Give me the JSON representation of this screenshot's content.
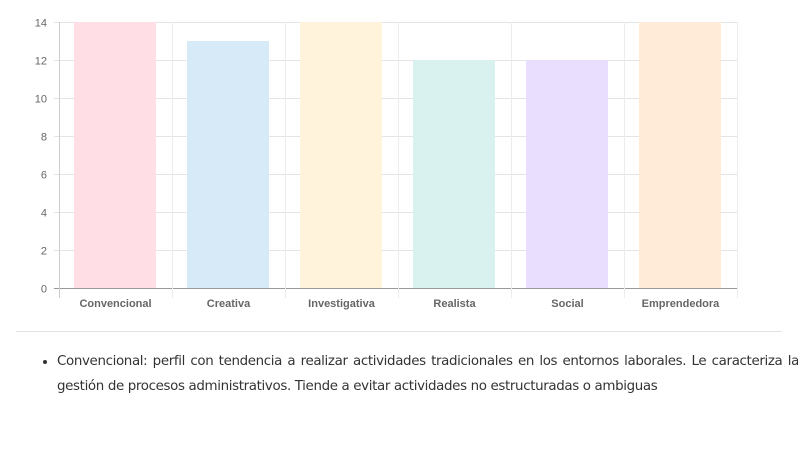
{
  "chart_data": {
    "type": "bar",
    "categories": [
      "Convencional",
      "Creativa",
      "Investigativa",
      "Realista",
      "Social",
      "Emprendedora"
    ],
    "values": [
      14,
      13,
      14,
      12,
      12,
      14
    ],
    "colors": [
      "#ffdee5",
      "#d6eaf8",
      "#fff3dc",
      "#d9f1ef",
      "#e9defd",
      "#ffebd8"
    ],
    "yticks": [
      "0",
      "2",
      "4",
      "6",
      "8",
      "10",
      "12",
      "14"
    ],
    "ylim": [
      0,
      14
    ],
    "title": "",
    "xlabel": "",
    "ylabel": "",
    "grid": true
  },
  "description": {
    "items": [
      "Convencional: perfil con tendencia a realizar actividades tradicionales en los entornos laborales. Le caracteriza la gestión de procesos administrativos. Tiende a evitar actividades no estructuradas o ambiguas"
    ]
  }
}
